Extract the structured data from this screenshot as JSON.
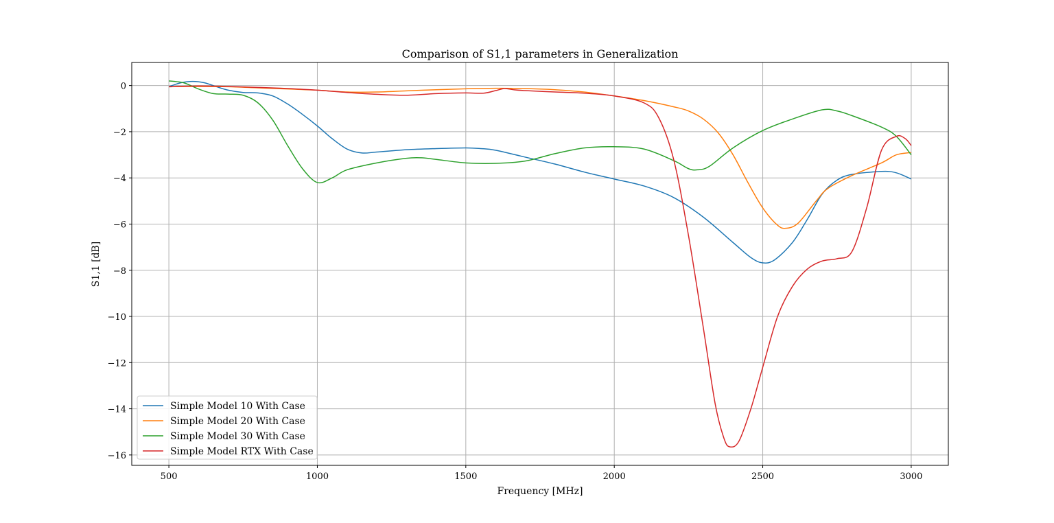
{
  "chart_data": {
    "type": "line",
    "title": "Comparison of S1,1 parameters in Generalization",
    "xlabel": "Frequency [MHz]",
    "ylabel": "S1,1 [dB]",
    "xlim": [
      375,
      3125
    ],
    "ylim": [
      -16.45,
      1.0
    ],
    "xticks": [
      500,
      1000,
      1500,
      2000,
      2500,
      3000
    ],
    "yticks": [
      0,
      -2,
      -4,
      -6,
      -8,
      -10,
      -12,
      -14,
      -16
    ],
    "ytick_labels": [
      "0",
      "−2",
      "−4",
      "−6",
      "−8",
      "−10",
      "−12",
      "−14",
      "−16"
    ],
    "grid": true,
    "legend_position": "lower-left",
    "series": [
      {
        "name": "Simple Model 10 With Case",
        "color": "#1f77b4",
        "points": [
          [
            500,
            -0.05
          ],
          [
            540,
            0.12
          ],
          [
            580,
            0.18
          ],
          [
            620,
            0.12
          ],
          [
            660,
            -0.05
          ],
          [
            700,
            -0.2
          ],
          [
            750,
            -0.3
          ],
          [
            800,
            -0.32
          ],
          [
            850,
            -0.45
          ],
          [
            900,
            -0.8
          ],
          [
            950,
            -1.25
          ],
          [
            1000,
            -1.75
          ],
          [
            1050,
            -2.3
          ],
          [
            1100,
            -2.75
          ],
          [
            1150,
            -2.92
          ],
          [
            1200,
            -2.88
          ],
          [
            1300,
            -2.78
          ],
          [
            1400,
            -2.73
          ],
          [
            1500,
            -2.7
          ],
          [
            1550,
            -2.73
          ],
          [
            1600,
            -2.8
          ],
          [
            1700,
            -3.1
          ],
          [
            1800,
            -3.4
          ],
          [
            1900,
            -3.75
          ],
          [
            2000,
            -4.05
          ],
          [
            2100,
            -4.35
          ],
          [
            2200,
            -4.85
          ],
          [
            2300,
            -5.7
          ],
          [
            2400,
            -6.8
          ],
          [
            2460,
            -7.45
          ],
          [
            2500,
            -7.68
          ],
          [
            2540,
            -7.55
          ],
          [
            2600,
            -6.8
          ],
          [
            2650,
            -5.8
          ],
          [
            2700,
            -4.7
          ],
          [
            2750,
            -4.1
          ],
          [
            2800,
            -3.85
          ],
          [
            2900,
            -3.72
          ],
          [
            2950,
            -3.78
          ],
          [
            3000,
            -4.05
          ]
        ]
      },
      {
        "name": "Simple Model 20 With Case",
        "color": "#ff7f0e",
        "points": [
          [
            500,
            -0.05
          ],
          [
            600,
            -0.04
          ],
          [
            700,
            -0.05
          ],
          [
            800,
            -0.1
          ],
          [
            900,
            -0.15
          ],
          [
            1000,
            -0.2
          ],
          [
            1100,
            -0.28
          ],
          [
            1200,
            -0.28
          ],
          [
            1300,
            -0.23
          ],
          [
            1400,
            -0.18
          ],
          [
            1500,
            -0.14
          ],
          [
            1600,
            -0.12
          ],
          [
            1700,
            -0.13
          ],
          [
            1800,
            -0.18
          ],
          [
            1900,
            -0.28
          ],
          [
            2000,
            -0.45
          ],
          [
            2100,
            -0.65
          ],
          [
            2200,
            -0.92
          ],
          [
            2250,
            -1.1
          ],
          [
            2300,
            -1.45
          ],
          [
            2350,
            -2.05
          ],
          [
            2400,
            -3.0
          ],
          [
            2450,
            -4.2
          ],
          [
            2500,
            -5.3
          ],
          [
            2550,
            -6.05
          ],
          [
            2580,
            -6.18
          ],
          [
            2620,
            -5.95
          ],
          [
            2680,
            -5.0
          ],
          [
            2720,
            -4.45
          ],
          [
            2800,
            -3.9
          ],
          [
            2900,
            -3.35
          ],
          [
            2950,
            -3.0
          ],
          [
            3000,
            -2.9
          ]
        ]
      },
      {
        "name": "Simple Model 30 With Case",
        "color": "#2ca02c",
        "points": [
          [
            500,
            0.2
          ],
          [
            550,
            0.12
          ],
          [
            600,
            -0.15
          ],
          [
            650,
            -0.35
          ],
          [
            700,
            -0.37
          ],
          [
            750,
            -0.42
          ],
          [
            800,
            -0.75
          ],
          [
            850,
            -1.5
          ],
          [
            900,
            -2.6
          ],
          [
            950,
            -3.6
          ],
          [
            1000,
            -4.2
          ],
          [
            1050,
            -4.0
          ],
          [
            1100,
            -3.65
          ],
          [
            1200,
            -3.35
          ],
          [
            1300,
            -3.15
          ],
          [
            1350,
            -3.13
          ],
          [
            1400,
            -3.2
          ],
          [
            1500,
            -3.35
          ],
          [
            1600,
            -3.37
          ],
          [
            1700,
            -3.27
          ],
          [
            1800,
            -2.95
          ],
          [
            1900,
            -2.7
          ],
          [
            2000,
            -2.65
          ],
          [
            2100,
            -2.75
          ],
          [
            2200,
            -3.25
          ],
          [
            2250,
            -3.6
          ],
          [
            2280,
            -3.65
          ],
          [
            2320,
            -3.5
          ],
          [
            2400,
            -2.7
          ],
          [
            2500,
            -1.95
          ],
          [
            2600,
            -1.45
          ],
          [
            2700,
            -1.05
          ],
          [
            2750,
            -1.1
          ],
          [
            2800,
            -1.3
          ],
          [
            2900,
            -1.8
          ],
          [
            2950,
            -2.2
          ],
          [
            3000,
            -3.0
          ]
        ]
      },
      {
        "name": "Simple Model RTX With Case",
        "color": "#d62728",
        "points": [
          [
            500,
            -0.05
          ],
          [
            600,
            -0.02
          ],
          [
            700,
            -0.04
          ],
          [
            800,
            -0.08
          ],
          [
            900,
            -0.13
          ],
          [
            1000,
            -0.2
          ],
          [
            1100,
            -0.3
          ],
          [
            1200,
            -0.38
          ],
          [
            1300,
            -0.42
          ],
          [
            1400,
            -0.35
          ],
          [
            1500,
            -0.32
          ],
          [
            1560,
            -0.33
          ],
          [
            1600,
            -0.22
          ],
          [
            1630,
            -0.13
          ],
          [
            1660,
            -0.18
          ],
          [
            1700,
            -0.22
          ],
          [
            1800,
            -0.28
          ],
          [
            1900,
            -0.33
          ],
          [
            2000,
            -0.45
          ],
          [
            2100,
            -0.75
          ],
          [
            2150,
            -1.4
          ],
          [
            2200,
            -3.2
          ],
          [
            2250,
            -6.5
          ],
          [
            2300,
            -10.5
          ],
          [
            2340,
            -13.8
          ],
          [
            2370,
            -15.3
          ],
          [
            2390,
            -15.65
          ],
          [
            2420,
            -15.4
          ],
          [
            2460,
            -14.0
          ],
          [
            2500,
            -12.2
          ],
          [
            2550,
            -10.0
          ],
          [
            2600,
            -8.7
          ],
          [
            2650,
            -7.95
          ],
          [
            2700,
            -7.6
          ],
          [
            2750,
            -7.5
          ],
          [
            2800,
            -7.2
          ],
          [
            2850,
            -5.3
          ],
          [
            2900,
            -2.8
          ],
          [
            2950,
            -2.2
          ],
          [
            2980,
            -2.3
          ],
          [
            3000,
            -2.6
          ]
        ]
      }
    ]
  }
}
